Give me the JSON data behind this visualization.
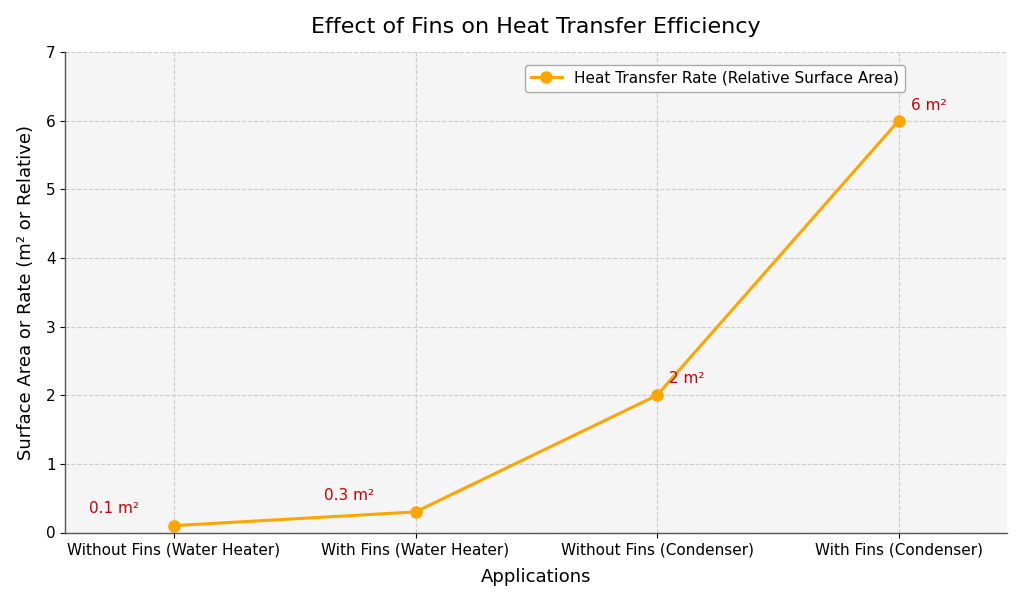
{
  "title": "Effect of Fins on Heat Transfer Efficiency",
  "xlabel": "Applications",
  "ylabel": "Surface Area or Rate (m² or Relative)",
  "categories": [
    "Without Fins (Water Heater)",
    "With Fins (Water Heater)",
    "Without Fins (Condenser)",
    "With Fins (Condenser)"
  ],
  "values": [
    0.1,
    0.3,
    2.0,
    6.0
  ],
  "annotations": [
    "0.1 m²",
    "0.3 m²",
    "2 m²",
    "6 m²"
  ],
  "line_color": "#FFA500",
  "marker_color": "#FFA500",
  "annotation_color": "#CC0000",
  "legend_label": "Heat Transfer Rate (Relative Surface Area)",
  "ylim": [
    0,
    7
  ],
  "yticks": [
    0,
    1,
    2,
    3,
    4,
    5,
    6,
    7
  ],
  "title_fontsize": 16,
  "label_fontsize": 13,
  "tick_fontsize": 11,
  "annotation_fontsize": 11,
  "legend_fontsize": 11,
  "background_color": "#FFFFFF",
  "plot_bg_color": "#F5F5F5",
  "grid_color": "#CCCCCC"
}
